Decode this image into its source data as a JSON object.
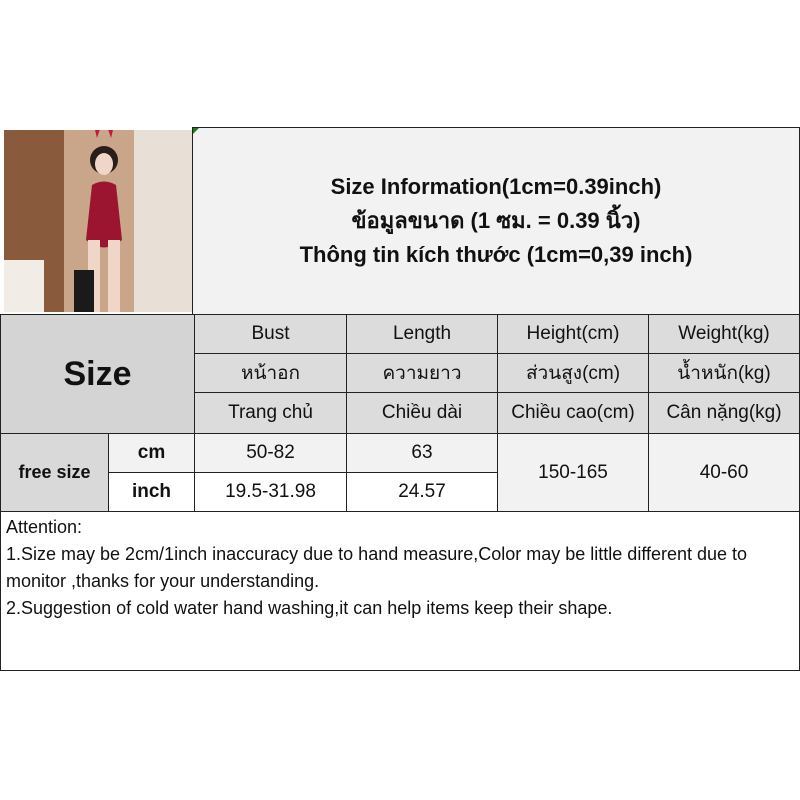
{
  "title": {
    "lines": [
      "Size Information(1cm=0.39inch)",
      "ข้อมูลขนาด (1 ซม. = 0.39 นิ้ว)",
      "Thông tin kích thước (1cm=0,39 inch)"
    ]
  },
  "table": {
    "size_label": "Size",
    "columns": [
      {
        "en": "Bust",
        "th": "หน้าอก",
        "vi": "Trang chủ"
      },
      {
        "en": "Length",
        "th": "ความยาว",
        "vi": "Chiều dài"
      },
      {
        "en": "Height(cm)",
        "th": "ส่วนสูง(cm)",
        "vi": "Chiều cao(cm)"
      },
      {
        "en": "Weight(kg)",
        "th": "น้ำหนัก(kg)",
        "vi": "Cân nặng(kg)"
      }
    ],
    "row_label": "free size",
    "units": [
      "cm",
      "inch"
    ],
    "cm_values": {
      "bust": "50-82",
      "length": "63"
    },
    "inch_values": {
      "bust": "19.5-31.98",
      "length": "24.57"
    },
    "height": "150-165",
    "weight": "40-60"
  },
  "attention": {
    "heading": "Attention:",
    "items": [
      "1.Size may be 2cm/1inch inaccuracy due to hand measure,Color may be little different due to monitor ,thanks for your understanding.",
      "2.Suggestion of cold water hand washing,it can help items keep their shape."
    ]
  }
}
